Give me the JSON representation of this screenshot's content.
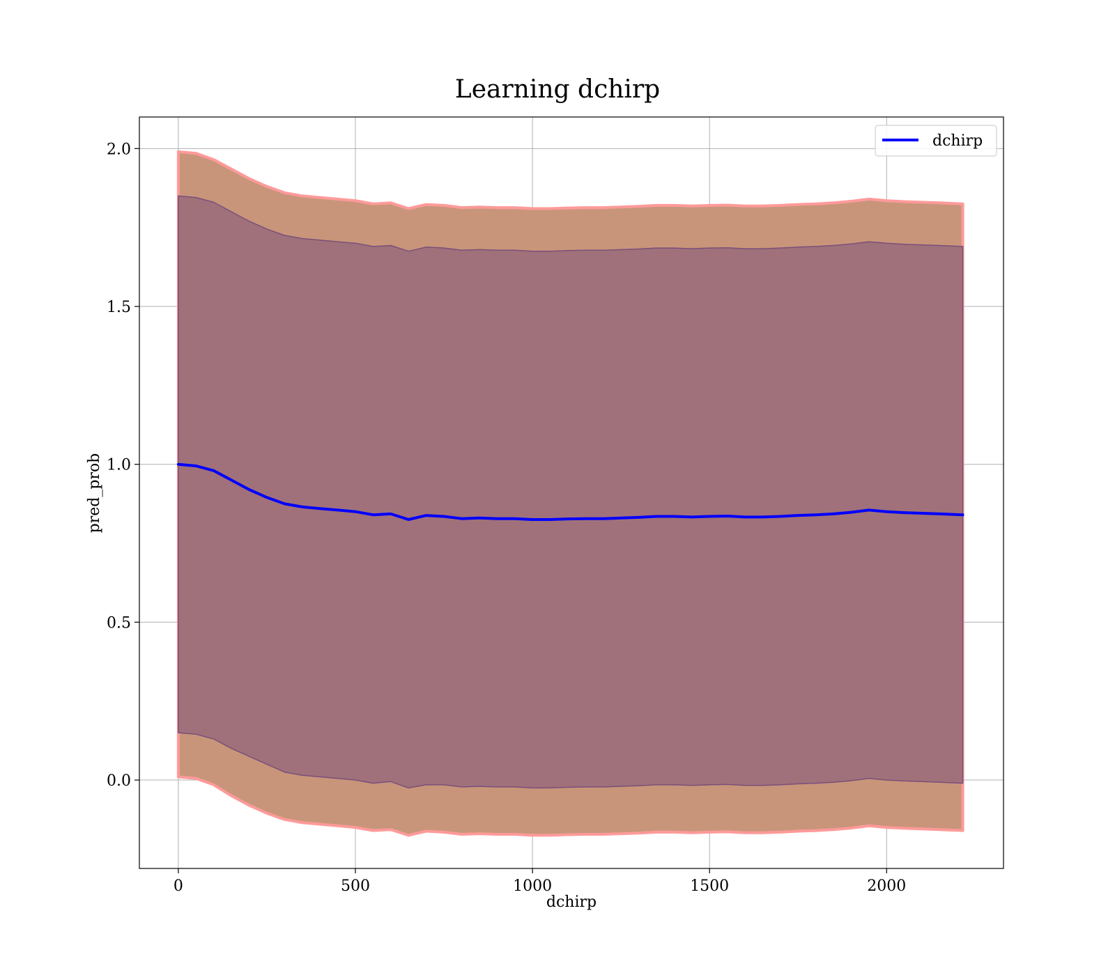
{
  "chart_data": {
    "type": "line",
    "title": "Learning dchirp",
    "xlabel": "dchirp",
    "ylabel": "pred_prob",
    "xlim": [
      -110,
      2330
    ],
    "ylim": [
      -0.28,
      2.1
    ],
    "xticks": [
      0,
      500,
      1000,
      1500,
      2000
    ],
    "xtick_labels": [
      "0",
      "500",
      "1000",
      "1500",
      "2000"
    ],
    "yticks": [
      0.0,
      0.5,
      1.0,
      1.5,
      2.0
    ],
    "ytick_labels": [
      "0.0",
      "0.5",
      "1.0",
      "1.5",
      "2.0"
    ],
    "grid": true,
    "legend": {
      "position": "top-right",
      "entries": [
        "dchirp"
      ]
    },
    "colors": {
      "line": "#0000ff",
      "outer_band": "#c8957a",
      "outer_band_edge": "#ff9a9a",
      "inner_band": "#a0717a",
      "inner_band_edge": "#7a4f7a",
      "grid": "#b0b0b0"
    },
    "series": [
      {
        "name": "dchirp",
        "x": [
          0,
          50,
          100,
          150,
          200,
          250,
          300,
          350,
          400,
          450,
          500,
          550,
          600,
          650,
          700,
          750,
          800,
          850,
          900,
          950,
          1000,
          1050,
          1100,
          1150,
          1200,
          1250,
          1300,
          1350,
          1400,
          1450,
          1500,
          1550,
          1600,
          1650,
          1700,
          1750,
          1800,
          1850,
          1900,
          1950,
          2000,
          2050,
          2100,
          2150,
          2215
        ],
        "mean": [
          1.0,
          0.995,
          0.98,
          0.95,
          0.92,
          0.895,
          0.875,
          0.865,
          0.86,
          0.855,
          0.85,
          0.84,
          0.843,
          0.825,
          0.838,
          0.835,
          0.828,
          0.83,
          0.828,
          0.828,
          0.825,
          0.825,
          0.827,
          0.828,
          0.828,
          0.83,
          0.832,
          0.835,
          0.835,
          0.833,
          0.835,
          0.836,
          0.833,
          0.833,
          0.835,
          0.838,
          0.84,
          0.843,
          0.848,
          0.855,
          0.85,
          0.847,
          0.845,
          0.843,
          0.84
        ],
        "inner_lower": [
          0.15,
          0.145,
          0.13,
          0.1,
          0.075,
          0.05,
          0.025,
          0.015,
          0.01,
          0.005,
          0.0,
          -0.01,
          -0.005,
          -0.025,
          -0.015,
          -0.015,
          -0.022,
          -0.02,
          -0.022,
          -0.022,
          -0.025,
          -0.025,
          -0.023,
          -0.022,
          -0.022,
          -0.02,
          -0.018,
          -0.015,
          -0.015,
          -0.017,
          -0.015,
          -0.014,
          -0.017,
          -0.017,
          -0.015,
          -0.012,
          -0.01,
          -0.007,
          -0.002,
          0.005,
          0.0,
          -0.003,
          -0.005,
          -0.007,
          -0.01
        ],
        "inner_upper": [
          1.85,
          1.845,
          1.83,
          1.8,
          1.77,
          1.745,
          1.725,
          1.715,
          1.71,
          1.705,
          1.7,
          1.69,
          1.693,
          1.675,
          1.688,
          1.685,
          1.678,
          1.68,
          1.678,
          1.678,
          1.675,
          1.675,
          1.677,
          1.678,
          1.678,
          1.68,
          1.682,
          1.685,
          1.685,
          1.683,
          1.685,
          1.686,
          1.683,
          1.683,
          1.685,
          1.688,
          1.69,
          1.693,
          1.698,
          1.705,
          1.7,
          1.697,
          1.695,
          1.693,
          1.69
        ],
        "outer_lower": [
          0.01,
          0.005,
          -0.015,
          -0.05,
          -0.08,
          -0.105,
          -0.125,
          -0.135,
          -0.14,
          -0.145,
          -0.15,
          -0.16,
          -0.157,
          -0.175,
          -0.162,
          -0.165,
          -0.172,
          -0.17,
          -0.172,
          -0.172,
          -0.175,
          -0.175,
          -0.173,
          -0.172,
          -0.172,
          -0.17,
          -0.168,
          -0.165,
          -0.165,
          -0.167,
          -0.165,
          -0.164,
          -0.167,
          -0.167,
          -0.165,
          -0.162,
          -0.16,
          -0.157,
          -0.152,
          -0.145,
          -0.15,
          -0.153,
          -0.155,
          -0.157,
          -0.16
        ],
        "outer_upper": [
          1.99,
          1.985,
          1.965,
          1.935,
          1.905,
          1.88,
          1.86,
          1.85,
          1.845,
          1.84,
          1.835,
          1.825,
          1.828,
          1.81,
          1.823,
          1.82,
          1.813,
          1.815,
          1.813,
          1.813,
          1.81,
          1.81,
          1.812,
          1.813,
          1.813,
          1.815,
          1.817,
          1.82,
          1.82,
          1.818,
          1.82,
          1.821,
          1.818,
          1.818,
          1.82,
          1.823,
          1.825,
          1.828,
          1.833,
          1.84,
          1.835,
          1.832,
          1.83,
          1.828,
          1.825
        ]
      }
    ]
  }
}
